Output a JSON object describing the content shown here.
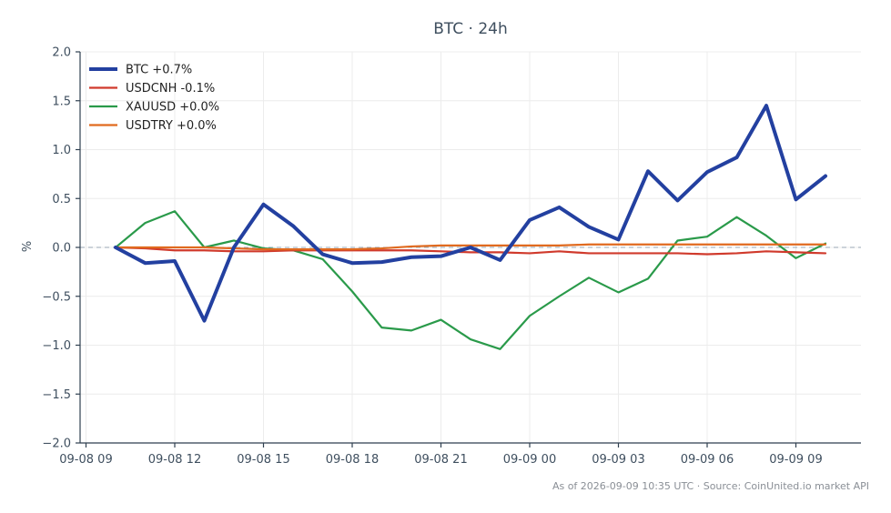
{
  "chart_data": {
    "type": "line",
    "title": "BTC · 24h",
    "xlabel": "",
    "ylabel": "%",
    "ylim": [
      -2.0,
      2.0
    ],
    "yticks": [
      2.0,
      1.5,
      1.0,
      0.5,
      0.0,
      -0.5,
      -1.0,
      -1.5,
      -2.0
    ],
    "ytick_labels": [
      "2.0",
      "1.5",
      "1.0",
      "0.5",
      "0.0",
      "−0.5",
      "−1.0",
      "−1.5",
      "−2.0"
    ],
    "xlim": [
      -1.2,
      25.2
    ],
    "xticks": [
      -1,
      2,
      5,
      8,
      11,
      14,
      17,
      20,
      23
    ],
    "xtick_labels": [
      "09-08 09",
      "09-08 12",
      "09-08 15",
      "09-08 18",
      "09-08 21",
      "09-09 00",
      "09-09 03",
      "09-09 06",
      "09-09 09"
    ],
    "x": [
      0,
      1,
      2,
      3,
      4,
      5,
      6,
      7,
      8,
      9,
      10,
      11,
      12,
      13,
      14,
      15,
      16,
      17,
      18,
      19,
      20,
      21,
      22,
      23,
      24
    ],
    "grid": true,
    "zero_line": true,
    "legend_position": "top-left",
    "series": [
      {
        "name": "BTC +0.7%",
        "color": "#2340a0",
        "values": [
          0.0,
          -0.16,
          -0.14,
          -0.75,
          0.0,
          0.44,
          0.22,
          -0.07,
          -0.16,
          -0.15,
          -0.1,
          -0.09,
          0.0,
          -0.13,
          0.28,
          0.41,
          0.21,
          0.08,
          0.78,
          0.48,
          0.77,
          0.92,
          1.45,
          0.49,
          0.73
        ]
      },
      {
        "name": "USDCNH -0.1%",
        "color": "#d03a2c",
        "values": [
          0.0,
          -0.01,
          -0.03,
          -0.03,
          -0.04,
          -0.04,
          -0.03,
          -0.03,
          -0.03,
          -0.03,
          -0.03,
          -0.04,
          -0.05,
          -0.05,
          -0.06,
          -0.04,
          -0.06,
          -0.06,
          -0.06,
          -0.06,
          -0.07,
          -0.06,
          -0.04,
          -0.05,
          -0.06
        ]
      },
      {
        "name": "XAUUSD +0.0%",
        "color": "#2a9a4a",
        "values": [
          0.0,
          0.25,
          0.37,
          0.0,
          0.07,
          -0.01,
          -0.03,
          -0.12,
          -0.45,
          -0.82,
          -0.85,
          -0.74,
          -0.94,
          -1.04,
          -0.7,
          -0.5,
          -0.31,
          -0.46,
          -0.32,
          0.07,
          0.11,
          0.31,
          0.12,
          -0.11,
          0.04
        ]
      },
      {
        "name": "USDTRY +0.0%",
        "color": "#e06a1f",
        "values": [
          0.0,
          0.0,
          0.0,
          0.0,
          -0.01,
          -0.02,
          -0.02,
          -0.02,
          -0.02,
          -0.01,
          0.01,
          0.02,
          0.02,
          0.02,
          0.02,
          0.02,
          0.03,
          0.03,
          0.03,
          0.03,
          0.03,
          0.03,
          0.03,
          0.03,
          0.03
        ]
      }
    ]
  },
  "footer": {
    "text": "As of 2026-09-09 10:35 UTC · Source: CoinUnited.io market API"
  }
}
